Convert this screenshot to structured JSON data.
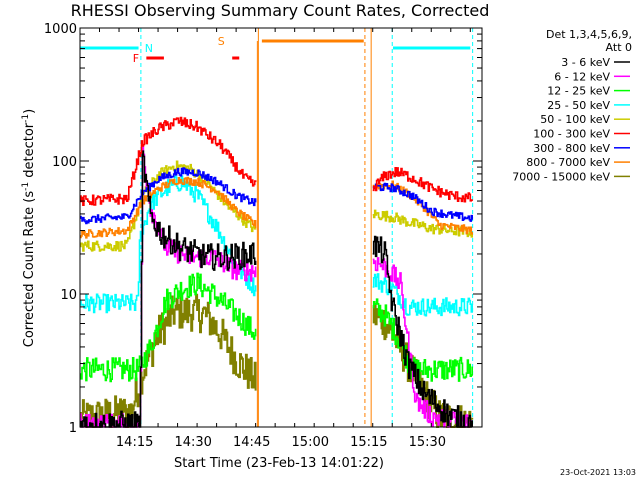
{
  "chart_data": {
    "type": "line",
    "title": "RHESSI Observing Summary Count Rates, Corrected",
    "xlabel": "Start Time (23-Feb-13 14:01:22)",
    "ylabel_main": "Corrected Count Rate (s",
    "ylabel_sup1": "-1",
    "ylabel_mid": " detector",
    "ylabel_sup2": "-1",
    "ylabel_end": ")",
    "yscale": "log",
    "ylim": [
      1,
      1000
    ],
    "y_ticks": [
      {
        "value": 1,
        "label": "1"
      },
      {
        "value": 10,
        "label": "10"
      },
      {
        "value": 100,
        "label": "100"
      },
      {
        "value": 1000,
        "label": "1000"
      }
    ],
    "xlim_min": [
      0,
      103
    ],
    "x_ticks": [
      {
        "value": 14,
        "label": "14:15"
      },
      {
        "value": 29,
        "label": "14:30"
      },
      {
        "value": 44,
        "label": "14:45"
      },
      {
        "value": 59,
        "label": "15:00"
      },
      {
        "value": 74,
        "label": "15:15"
      },
      {
        "value": 89,
        "label": "15:30"
      }
    ],
    "legend_header": [
      "Det 1,3,4,5,6,9,",
      "Att 0"
    ],
    "legend_position": "right",
    "series": [
      {
        "name": "3 - 6 keV",
        "color": "#000000"
      },
      {
        "name": "6 - 12 keV",
        "color": "#ff00ff"
      },
      {
        "name": "12 - 25 keV",
        "color": "#00ff00"
      },
      {
        "name": "25 - 50 keV",
        "color": "#00ffff"
      },
      {
        "name": "50 - 100 keV",
        "color": "#cccc00"
      },
      {
        "name": "100 - 300 keV",
        "color": "#ff0000"
      },
      {
        "name": "300 - 800 keV",
        "color": "#0000ff"
      },
      {
        "name": "800 - 7000 keV",
        "color": "#ff8000"
      },
      {
        "name": "7000 - 15000 keV",
        "color": "#808000"
      }
    ],
    "flags": [
      {
        "label": "N",
        "color": "#00ffff"
      },
      {
        "label": "F",
        "color": "#ff0000"
      },
      {
        "label": "S",
        "color": "#ff8000"
      }
    ],
    "stamp": "23-Oct-2021 13:03"
  }
}
